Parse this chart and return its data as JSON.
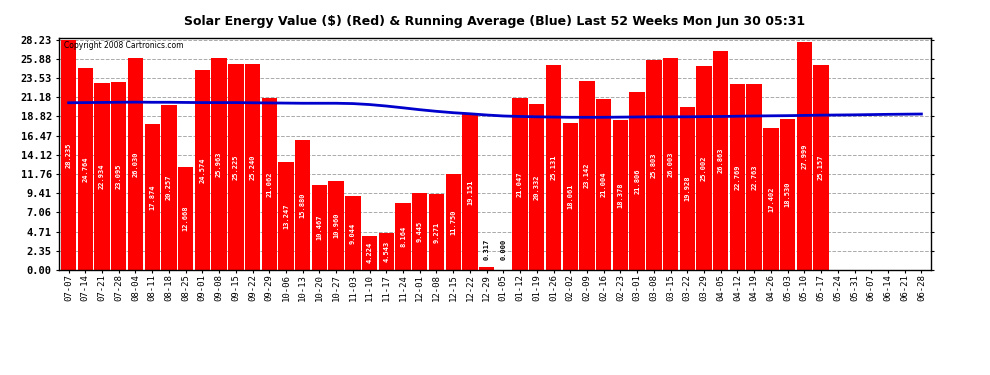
{
  "title": "Solar Energy Value ($) (Red) & Running Average (Blue) Last 52 Weeks Mon Jun 30 05:31",
  "copyright": "Copyright 2008 Cartronics.com",
  "bar_color": "#ff0000",
  "line_color": "#0000cc",
  "bg_color": "#ffffff",
  "plot_bg_color": "#ffffff",
  "grid_color": "#aaaaaa",
  "yticks": [
    0.0,
    2.35,
    4.71,
    7.06,
    9.41,
    11.76,
    14.12,
    16.47,
    18.82,
    21.18,
    23.53,
    25.88,
    28.23
  ],
  "xlabels": [
    "07-07",
    "07-14",
    "07-21",
    "07-28",
    "08-04",
    "08-11",
    "08-18",
    "08-25",
    "09-01",
    "09-08",
    "09-15",
    "09-22",
    "09-29",
    "10-06",
    "10-13",
    "10-20",
    "10-27",
    "11-03",
    "11-10",
    "11-17",
    "11-24",
    "12-01",
    "12-08",
    "12-15",
    "12-22",
    "12-29",
    "01-05",
    "01-12",
    "01-19",
    "01-26",
    "02-02",
    "02-09",
    "02-16",
    "02-23",
    "03-01",
    "03-08",
    "03-15",
    "03-22",
    "03-29",
    "04-05",
    "04-12",
    "04-19",
    "04-26",
    "05-03",
    "05-10",
    "05-17",
    "05-24",
    "05-31",
    "06-07",
    "06-14",
    "06-21",
    "06-28"
  ],
  "values": [
    28.235,
    24.764,
    22.934,
    23.095,
    26.03,
    17.874,
    20.257,
    12.668,
    24.574,
    25.963,
    25.225,
    25.24,
    21.062,
    13.247,
    15.88,
    10.467,
    10.96,
    9.044,
    4.224,
    4.543,
    8.164,
    9.445,
    9.271,
    11.75,
    19.151,
    0.317,
    0.0,
    21.047,
    20.332,
    25.131,
    18.061,
    23.142,
    21.004,
    18.378,
    21.806,
    25.803,
    26.003,
    19.928,
    25.002,
    26.863,
    22.769,
    22.763,
    17.402,
    18.53,
    27.999,
    25.157,
    0.0,
    0.0,
    0.0,
    0.0,
    0.0,
    0.0
  ],
  "value_labels": [
    "28.235",
    "24.764",
    "22.934",
    "23.095",
    "26.030",
    "17.874",
    "20.257",
    "12.668",
    "24.574",
    "25.963",
    "25.225",
    "25.240",
    "21.062",
    "13.247",
    "15.880",
    "10.467",
    "10.960",
    "9.044",
    "4.224",
    "4.543",
    "8.164",
    "9.445",
    "9.271",
    "11.750",
    "19.151",
    "0.317",
    "0.000",
    "21.047",
    "20.332",
    "25.131",
    "18.061",
    "23.142",
    "21.004",
    "18.378",
    "21.806",
    "25.803",
    "26.003",
    "19.928",
    "25.002",
    "26.863",
    "22.769",
    "22.763",
    "17.402",
    "18.530",
    "27.999",
    "25.157",
    "",
    "",
    "",
    "",
    "",
    ""
  ],
  "running_avg": [
    20.5,
    20.52,
    20.54,
    20.56,
    20.58,
    20.56,
    20.56,
    20.54,
    20.52,
    20.52,
    20.52,
    20.5,
    20.48,
    20.46,
    20.44,
    20.44,
    20.44,
    20.4,
    20.28,
    20.1,
    19.88,
    19.65,
    19.45,
    19.28,
    19.15,
    19.0,
    18.88,
    18.82,
    18.78,
    18.75,
    18.72,
    18.72,
    18.72,
    18.74,
    18.76,
    18.78,
    18.78,
    18.78,
    18.8,
    18.82,
    18.85,
    18.88,
    18.9,
    18.92,
    18.95,
    18.98,
    19.0,
    19.02,
    19.05,
    19.08,
    19.1,
    19.12
  ],
  "ylim_max": 28.5,
  "bar_width": 0.92,
  "figsize": [
    9.9,
    3.75
  ],
  "dpi": 100
}
